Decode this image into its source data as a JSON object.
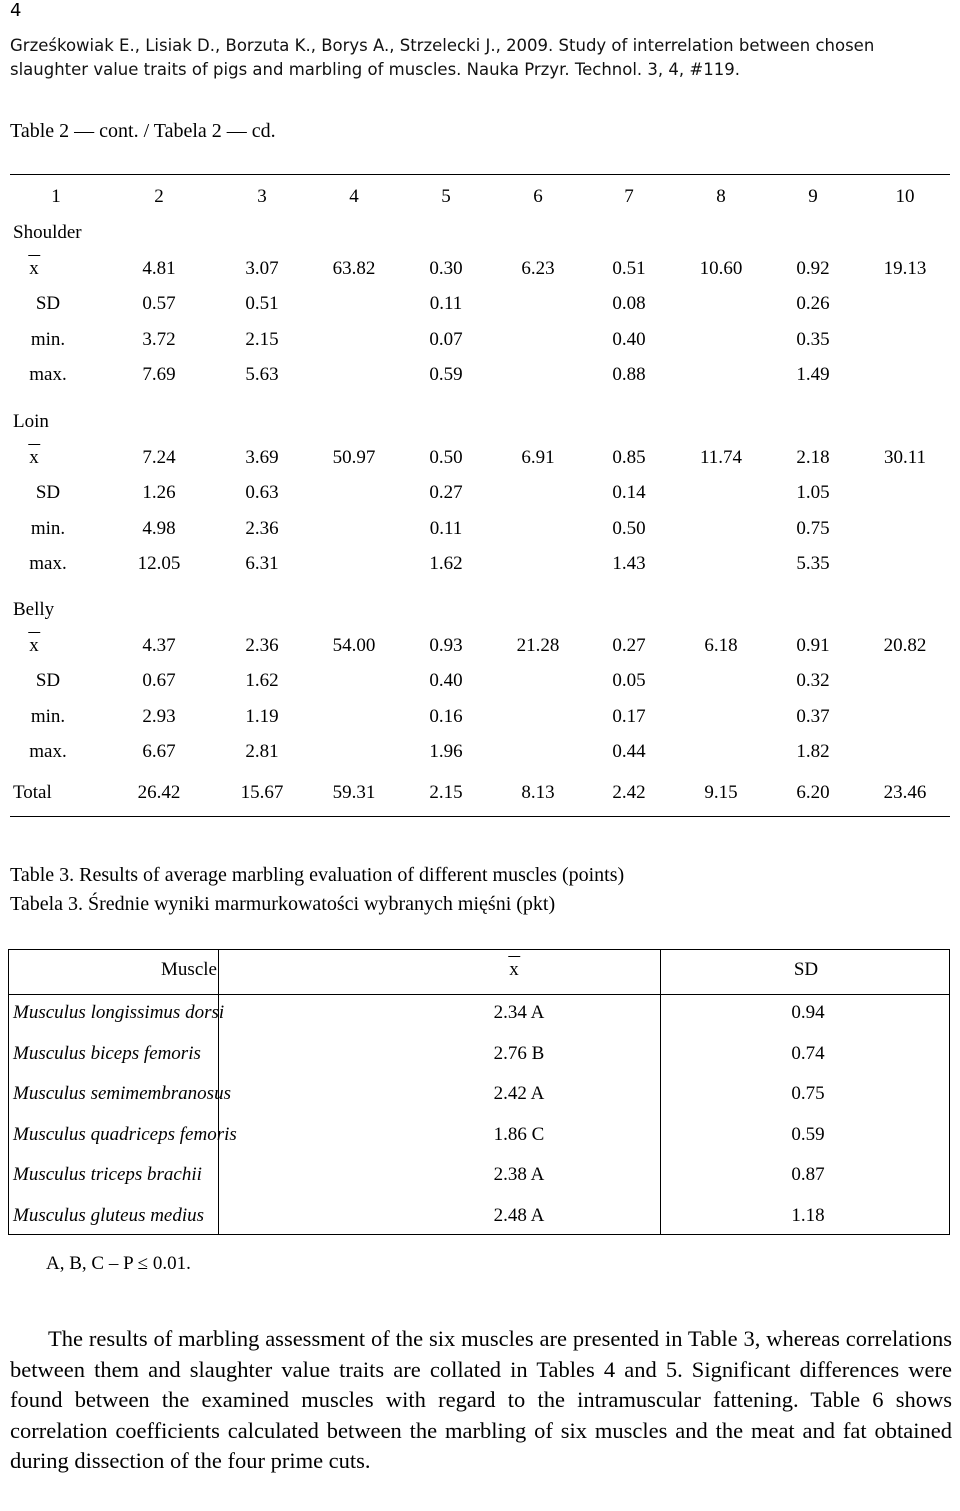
{
  "page_number": "4",
  "citation": "Grześkowiak E., Lisiak D., Borzuta K., Borys A., Strzelecki J., 2009. Study of interrelation between chosen slaughter value traits of pigs and marbling of muscles. Nauka Przyr. Technol. 3, 4, #119.",
  "table2": {
    "caption": "Table 2 — cont. / Tabela 2 — cd.",
    "col_headers": [
      "1",
      "2",
      "3",
      "4",
      "5",
      "6",
      "7",
      "8",
      "9",
      "10"
    ],
    "sections": [
      {
        "name": "Shoulder",
        "rows": [
          {
            "label": "x",
            "values": [
              "4.81",
              "3.07",
              "63.82",
              "0.30",
              "6.23",
              "0.51",
              "10.60",
              "0.92",
              "19.13"
            ]
          },
          {
            "label": "SD",
            "values": [
              "0.57",
              "0.51",
              "",
              "0.11",
              "",
              "0.08",
              "",
              "0.26",
              ""
            ]
          },
          {
            "label": "min.",
            "values": [
              "3.72",
              "2.15",
              "",
              "0.07",
              "",
              "0.40",
              "",
              "0.35",
              ""
            ]
          },
          {
            "label": "max.",
            "values": [
              "7.69",
              "5.63",
              "",
              "0.59",
              "",
              "0.88",
              "",
              "1.49",
              ""
            ]
          }
        ]
      },
      {
        "name": "Loin",
        "rows": [
          {
            "label": "x",
            "values": [
              "7.24",
              "3.69",
              "50.97",
              "0.50",
              "6.91",
              "0.85",
              "11.74",
              "2.18",
              "30.11"
            ]
          },
          {
            "label": "SD",
            "values": [
              "1.26",
              "0.63",
              "",
              "0.27",
              "",
              "0.14",
              "",
              "1.05",
              ""
            ]
          },
          {
            "label": "min.",
            "values": [
              "4.98",
              "2.36",
              "",
              "0.11",
              "",
              "0.50",
              "",
              "0.75",
              ""
            ]
          },
          {
            "label": "max.",
            "values": [
              "12.05",
              "6.31",
              "",
              "1.62",
              "",
              "1.43",
              "",
              "5.35",
              ""
            ]
          }
        ]
      },
      {
        "name": "Belly",
        "rows": [
          {
            "label": "x",
            "values": [
              "4.37",
              "2.36",
              "54.00",
              "0.93",
              "21.28",
              "0.27",
              "6.18",
              "0.91",
              "20.82"
            ]
          },
          {
            "label": "SD",
            "values": [
              "0.67",
              "1.62",
              "",
              "0.40",
              "",
              "0.05",
              "",
              "0.32",
              ""
            ]
          },
          {
            "label": "min.",
            "values": [
              "2.93",
              "1.19",
              "",
              "0.16",
              "",
              "0.17",
              "",
              "0.37",
              ""
            ]
          },
          {
            "label": "max.",
            "values": [
              "6.67",
              "2.81",
              "",
              "1.96",
              "",
              "0.44",
              "",
              "1.82",
              ""
            ]
          }
        ]
      }
    ],
    "total": {
      "label": "Total",
      "values": [
        "26.42",
        "15.67",
        "59.31",
        "2.15",
        "8.13",
        "2.42",
        "9.15",
        "6.20",
        "23.46"
      ]
    }
  },
  "table3": {
    "caption_en": "Table 3. Results of average marbling evaluation of different muscles (points)",
    "caption_pl": "Tabela 3. Średnie wyniki marmurkowatości wybranych mięśni (pkt)",
    "headers": {
      "muscle": "Muscle",
      "mean": "x",
      "sd": "SD"
    },
    "rows": [
      {
        "muscle": "Musculus longissimus dorsi",
        "mean": "2.34 A",
        "sd": "0.94"
      },
      {
        "muscle": "Musculus biceps femoris",
        "mean": "2.76 B",
        "sd": "0.74"
      },
      {
        "muscle": "Musculus semimembranosus",
        "mean": "2.42 A",
        "sd": "0.75"
      },
      {
        "muscle": "Musculus quadriceps femoris",
        "mean": "1.86 C",
        "sd": "0.59"
      },
      {
        "muscle": "Musculus triceps brachii",
        "mean": "2.38 A",
        "sd": "0.87"
      },
      {
        "muscle": "Musculus gluteus medius",
        "mean": "2.48 A",
        "sd": "1.18"
      }
    ],
    "note": "A, B, C – P ≤ 0.01."
  },
  "body_text": "The results of marbling assessment of the six muscles are presented in Table 3, whereas correlations between them and slaughter value traits are collated in Tables 4 and 5. Significant differences were found between the examined muscles with regard to the intramuscular fattening. Table 6 shows correlation coefficients calculated between the marbling of six muscles and the meat and fat obtained during dissection of the four prime cuts."
}
